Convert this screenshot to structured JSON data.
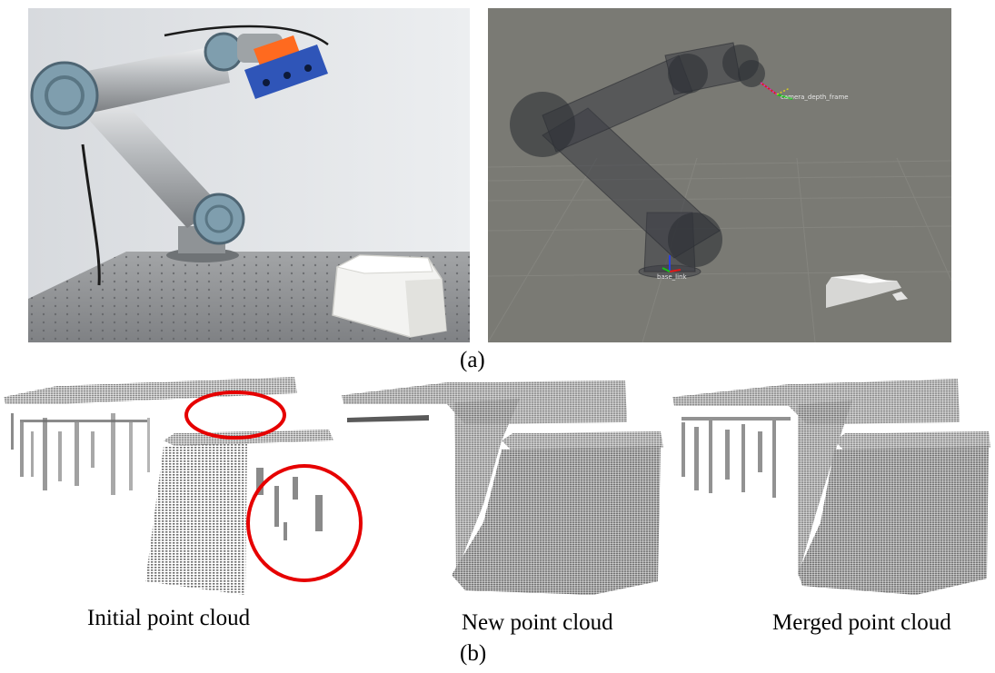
{
  "figure": {
    "panel_a": {
      "caption": "(a)",
      "photo": {
        "subject": "robot-arm-with-depth-camera-on-optical-table",
        "colors": {
          "wall": "#e2e5e8",
          "table": "#8d8f91",
          "arm_joint": "#7f9eae",
          "camera": "#2f55b8",
          "camera_mount": "#ff6a1f",
          "object": "#f3f3f1"
        }
      },
      "rviz": {
        "subject": "simulated-robot-model-and-point-cloud",
        "colors": {
          "background": "#7a7a74",
          "grid": "#8c8c86",
          "link": "#3a3d44"
        },
        "frame_labels": {
          "base": "base_link",
          "camera": "camera_depth_frame"
        }
      }
    },
    "panel_b": {
      "caption": "(b)",
      "clouds": [
        {
          "label": "Initial point cloud",
          "highlight_count": 2,
          "highlight_color": "#e60000"
        },
        {
          "label": "New point cloud"
        },
        {
          "label": "Merged point cloud"
        }
      ],
      "colors": {
        "points_top": "#8a8a8a",
        "points_side": "#6e6e6e",
        "points_dark": "#5a5a5a"
      }
    }
  }
}
